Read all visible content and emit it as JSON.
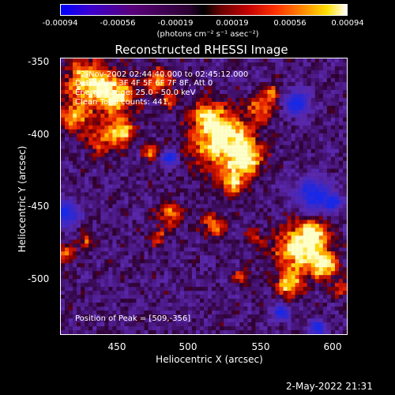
{
  "colorbar": {
    "ticks": [
      "-0.00094",
      "-0.00056",
      "-0.00019",
      "0.00019",
      "0.00056",
      "0.00094"
    ],
    "units": "(photons cm⁻² s⁻¹ asec⁻²)"
  },
  "title": "Reconstructed RHESSI Image",
  "annotations": {
    "time": "2-Nov-2002 02:44:40.000 to 02:45:12.000",
    "detectors": "Detectors: 3F 4F 5F 6F 7F 8F, Att 0",
    "energy": "Energy Range: 25.0 - 50.0 keV",
    "method": "Clean     Total counts: 441.",
    "peak": "Position of Peak = [509,-356]"
  },
  "axes": {
    "xlabel": "Heliocentric X (arcsec)",
    "ylabel": "Heliocentric Y (arcsec)",
    "xticks": [
      "450",
      "500",
      "550",
      "600"
    ],
    "yticks": [
      "-350",
      "-400",
      "-450",
      "-500"
    ],
    "xlim": [
      409,
      601
    ],
    "ylim": [
      -542,
      -348
    ]
  },
  "timestamp": "2-May-2022 21:31"
}
